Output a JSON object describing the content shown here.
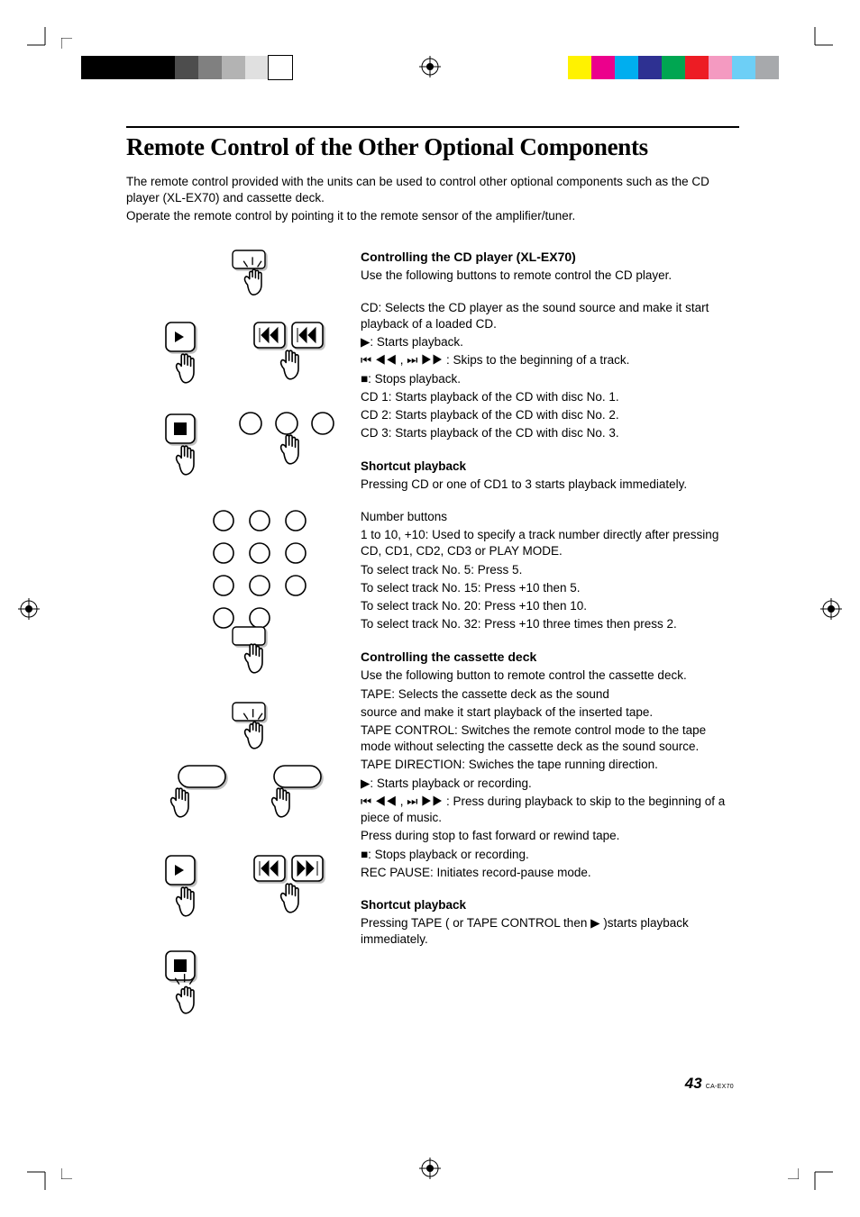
{
  "colorbars": {
    "left_grays": [
      "#000000",
      "#000000",
      "#000000",
      "#000000",
      "#4d4d4d",
      "#808080",
      "#b3b3b3",
      "#e0e0e0",
      "#ffffff"
    ],
    "right_colors": [
      "#fff200",
      "#ec008c",
      "#00aeef",
      "#2e3192",
      "#00a651",
      "#ed1c24",
      "#f49ac1",
      "#6dcff6",
      "#a7a9ac"
    ]
  },
  "title": "Remote Control of the Other Optional Components",
  "intro": {
    "p1": "The remote control provided with the units can be used to control other optional components such as the CD player (XL-EX70) and cassette deck.",
    "p2": "Operate the remote control by pointing it to the remote sensor of the amplifier/tuner."
  },
  "cd": {
    "heading": "Controlling the CD player (XL-EX70)",
    "p1": "Use the following buttons to remote control the CD player.",
    "p2": "CD: Selects the CD player as the sound source and make it start playback of a loaded CD.",
    "play": ": Starts playback.",
    "skip": ": Skips to the beginning of a track.",
    "stop": ": Stops playback.",
    "cd1": "CD 1: Starts playback of the CD with disc No. 1.",
    "cd2": "CD 2: Starts playback of the CD with disc No. 2.",
    "cd3": "CD 3: Starts playback of the CD with disc No. 3.",
    "shortcut_h": "Shortcut playback",
    "shortcut_p": "Pressing CD or one of CD1 to 3 starts playback immediately.",
    "num_h": "Number buttons",
    "num_p1": "1 to 10, +10: Used to specify a track number directly after pressing CD,  CD1, CD2, CD3 or PLAY MODE.",
    "num_p2": "To select track No. 5: Press 5.",
    "num_p3": "To select track No. 15: Press +10 then 5.",
    "num_p4": "To select track No. 20: Press +10 then 10.",
    "num_p5": "To select track No. 32: Press +10 three times then press 2."
  },
  "tape": {
    "heading": "Controlling the cassette deck",
    "p1": "Use the following button to remote control the cassette deck.",
    "p2": "TAPE: Selects the cassette deck as the sound",
    "p2b": " source and make it start playback of the inserted tape.",
    "p3": "TAPE CONTROL: Switches the remote control mode to the tape mode without selecting the cassette deck as the sound source.",
    "p4": "TAPE DIRECTION: Swiches the tape running direction.",
    "play": ": Starts playback or recording.",
    "skip": ": Press during playback to skip to the beginning of a piece of music.",
    "skip2": "Press during stop to fast forward or rewind tape.",
    "stop": ": Stops playback or recording.",
    "rec": "REC PAUSE: Initiates record-pause mode.",
    "shortcut_h": "Shortcut playback",
    "shortcut_p1": "Pressing TAPE ( or TAPE CONTROL then ",
    "shortcut_p2": " )starts playback immediately."
  },
  "footer": {
    "page": "43",
    "doc": "CA-EX70"
  },
  "glyphs": {
    "play": "▶",
    "stop": "■",
    "skipback": "⏮ ◀◀",
    "skipfwd": "⏭ ▶▶",
    "skipback2": "◀◀",
    "skipfwd2": "▶▶"
  }
}
